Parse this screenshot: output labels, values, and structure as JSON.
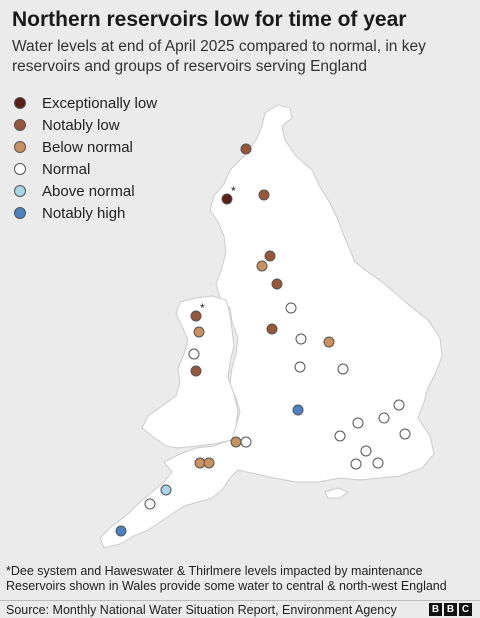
{
  "title": "Northern reservoirs low for time of year",
  "subtitle": "Water levels at end of April 2025 compared to normal, in key reservoirs and groups of reservoirs serving England",
  "legend": [
    {
      "label": "Exceptionally low",
      "color": "#5a2017"
    },
    {
      "label": "Notably low",
      "color": "#97583a"
    },
    {
      "label": "Below normal",
      "color": "#c9915e"
    },
    {
      "label": "Normal",
      "color": "#ffffff"
    },
    {
      "label": "Above normal",
      "color": "#a9d4ea"
    },
    {
      "label": "Notably high",
      "color": "#4a82c2"
    }
  ],
  "asterisk": "*",
  "footnote": {
    "line1": "*Dee system and Haweswater & Thirlmere levels impacted by maintenance",
    "line2": "Reservoirs shown in Wales provide some water to central & north-west England"
  },
  "source": "Source: Monthly National Water Situation Report, Environment Agency",
  "brand": [
    "B",
    "B",
    "C"
  ]
}
